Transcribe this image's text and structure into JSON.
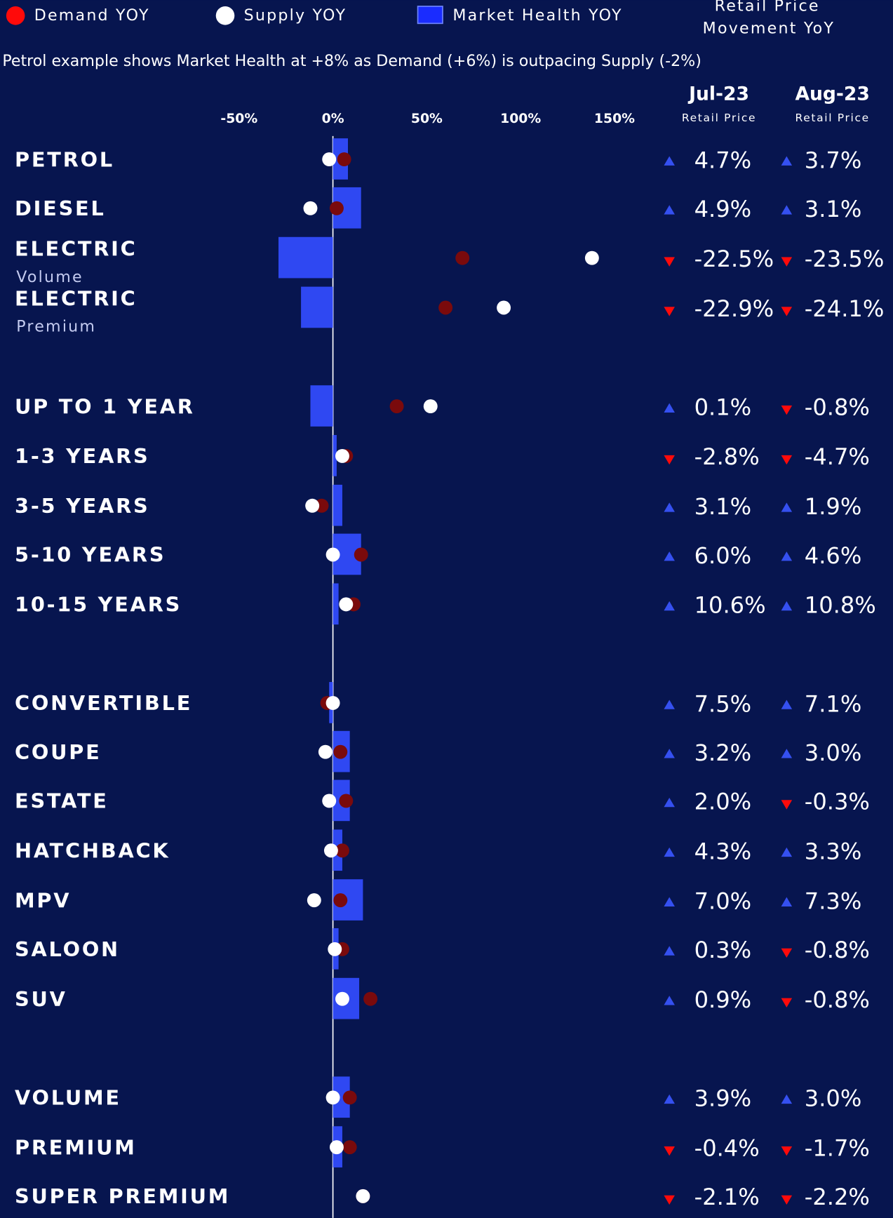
{
  "chart_data": {
    "type": "bar_dot",
    "note": "Petrol example shows Market Health at +8% as Demand (+6%) is outpacing Supply (-2%)",
    "categories": [
      "PETROL",
      "DIESEL",
      "ELECTRIC",
      "ELECTRIC",
      "UP TO 1 YEAR",
      "1-3 YEARS",
      "3-5 YEARS",
      "5-10 YEARS",
      "10-15 YEARS",
      "CONVERTIBLE",
      "COUPE",
      "ESTATE",
      "HATCHBACK",
      "MPV",
      "SALOON",
      "SUV",
      "VOLUME",
      "PREMIUM",
      "SUPER PREMIUM"
    ],
    "sublabels": [
      null,
      null,
      "Volume",
      "Premium",
      null,
      null,
      null,
      null,
      null,
      null,
      null,
      null,
      null,
      null,
      null,
      null,
      null,
      null,
      null
    ],
    "series": [
      {
        "name": "Market Health YOY",
        "marker": "bar",
        "color": "#2f48f2",
        "values": [
          8,
          15,
          -29,
          -17,
          -12,
          2,
          5,
          15,
          3,
          -2,
          9,
          9,
          5,
          16,
          3,
          14,
          9,
          5,
          null
        ]
      },
      {
        "name": "Demand YOY",
        "marker": "dot",
        "color": "#7a0a0c",
        "legend_color": "#ff0a0a",
        "values": [
          6,
          2,
          69,
          60,
          34,
          7,
          -6,
          15,
          11,
          -3,
          4,
          7,
          5,
          4,
          5,
          20,
          9,
          9,
          16
        ]
      },
      {
        "name": "Supply YOY",
        "marker": "dot",
        "color": "#ffffff",
        "values": [
          -2,
          -12,
          138,
          91,
          52,
          5,
          -11,
          0,
          7,
          0,
          -4,
          -2,
          -1,
          -10,
          1,
          5,
          0,
          2,
          16
        ]
      }
    ],
    "xlim": [
      -100,
      166
    ],
    "xticks": [
      {
        "value": -50,
        "label": "-50%"
      },
      {
        "value": 0,
        "label": "0%"
      },
      {
        "value": 50,
        "label": "50%"
      },
      {
        "value": 100,
        "label": "100%"
      },
      {
        "value": 150,
        "label": "150%"
      }
    ],
    "legend": "top"
  },
  "retail_price": {
    "title_lines": [
      "Retail Price",
      "Movement YoY"
    ],
    "up_color": "#3550f0",
    "down_color": "#ff0a0a",
    "columns": [
      {
        "name": "Jul-23",
        "sublabel": "Retail Price",
        "values": [
          4.7,
          4.9,
          -22.5,
          -22.9,
          0.1,
          -2.8,
          3.1,
          6.0,
          10.6,
          7.5,
          3.2,
          2.0,
          4.3,
          7.0,
          0.3,
          0.9,
          3.9,
          -0.4,
          -2.1
        ],
        "value_labels": [
          "4.7%",
          "4.9%",
          "-22.5%",
          "-22.9%",
          "0.1%",
          "-2.8%",
          "3.1%",
          "6.0%",
          "10.6%",
          "7.5%",
          "3.2%",
          "2.0%",
          "4.3%",
          "7.0%",
          "0.3%",
          "0.9%",
          "3.9%",
          "-0.4%",
          "-2.1%"
        ]
      },
      {
        "name": "Aug-23",
        "sublabel": "Retail Price",
        "values": [
          3.7,
          3.1,
          -23.5,
          -24.1,
          -0.8,
          -4.7,
          1.9,
          4.6,
          10.8,
          7.1,
          3.0,
          -0.3,
          3.3,
          7.3,
          -0.8,
          -0.8,
          3.0,
          -1.7,
          -2.2
        ],
        "value_labels": [
          "3.7%",
          "3.1%",
          "-23.5%",
          "-24.1%",
          "-0.8%",
          "-4.7%",
          "1.9%",
          "4.6%",
          "10.8%",
          "7.1%",
          "3.0%",
          "-0.3%",
          "3.3%",
          "7.3%",
          "-0.8%",
          "-0.8%",
          "3.0%",
          "-1.7%",
          "-2.2%"
        ]
      }
    ]
  }
}
